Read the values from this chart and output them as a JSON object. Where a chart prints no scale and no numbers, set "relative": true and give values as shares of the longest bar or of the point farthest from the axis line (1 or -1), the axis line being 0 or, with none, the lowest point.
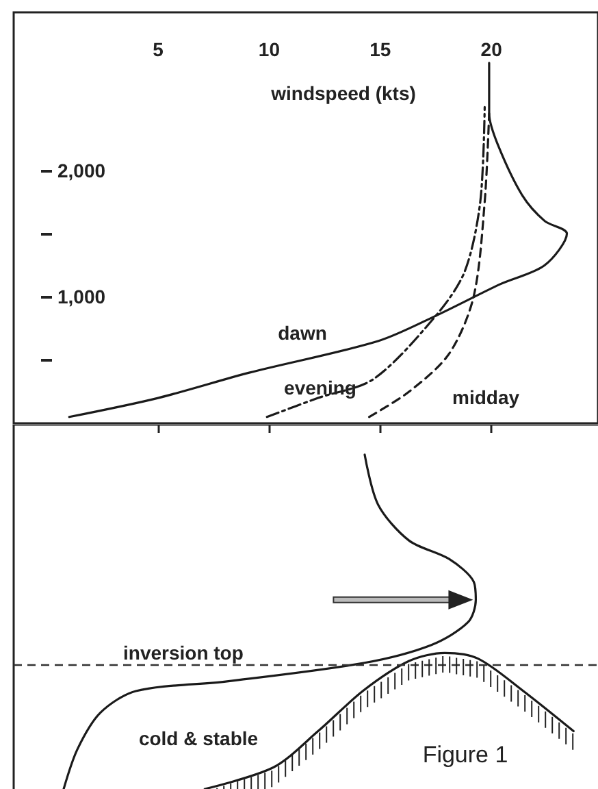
{
  "chart_data": [
    {
      "type": "line",
      "xlabel": "windspeed (kts)",
      "xlim": [
        -1.5,
        24.8
      ],
      "xticks": [
        5,
        10,
        15,
        20
      ],
      "ylim": [
        0,
        3250
      ],
      "yticks": [
        {
          "value": 500,
          "label": null
        },
        {
          "value": 1000,
          "label": "1,000"
        },
        {
          "value": 1500,
          "label": null
        },
        {
          "value": 2000,
          "label": "2,000"
        }
      ],
      "series": [
        {
          "name": "dawn",
          "color": "#1a1a1a",
          "line_style": "solid",
          "x": [
            1.0,
            5.0,
            9.1,
            14.9,
            17.5,
            20.4,
            22.4,
            23.4,
            22.4,
            21.4,
            20.3,
            19.9,
            19.9
          ],
          "values": [
            50,
            200,
            400,
            650,
            850,
            1100,
            1250,
            1500,
            1600,
            1800,
            2200,
            2450,
            2850
          ]
        },
        {
          "name": "evening",
          "color": "#1a1a1a",
          "line_style": "dashdot",
          "x": [
            9.9,
            12.2,
            14.7,
            17.5,
            18.8,
            19.5,
            19.7
          ],
          "values": [
            50,
            200,
            350,
            850,
            1200,
            1750,
            2500
          ]
        },
        {
          "name": "midday",
          "color": "#1a1a1a",
          "line_style": "dashed",
          "x": [
            14.5,
            16.3,
            18.1,
            19.2,
            19.7,
            19.9
          ],
          "values": [
            50,
            250,
            550,
            1000,
            1750,
            2450
          ]
        }
      ]
    },
    {
      "type": "line",
      "relative": true,
      "xlim": [
        -1.5,
        24.8
      ],
      "xticks": [
        5,
        10,
        15,
        20
      ],
      "tick_labels": false,
      "series": [
        {
          "color": "#1a1a1a",
          "x": [
            14.3,
            14.9,
            16.3,
            18.1,
            19.2,
            19.3,
            18.95,
            17.3,
            14.25,
            8.1,
            4.0,
            2.4,
            1.37,
            0.75
          ],
          "values": [
            1.0,
            0.851,
            0.743,
            0.688,
            0.621,
            0.566,
            0.499,
            0.431,
            0.377,
            0.322,
            0.293,
            0.228,
            0.119,
            0
          ]
        },
        {
          "color": "#1a1a1a",
          "x": [
            7.1,
            10.2,
            12.2,
            14.25,
            16.3,
            17.9,
            19.4,
            21.4,
            23.7
          ],
          "values": [
            0,
            0.065,
            0.173,
            0.295,
            0.383,
            0.407,
            0.39,
            0.295,
            0.173
          ]
        }
      ],
      "ref_lines": [
        {
          "axis": "y",
          "value": 0.374,
          "label": "inversion top",
          "color": "#333333",
          "line_style": "dashed"
        }
      ],
      "annotations": [
        "cold & stable",
        "Figure 1"
      ]
    }
  ]
}
